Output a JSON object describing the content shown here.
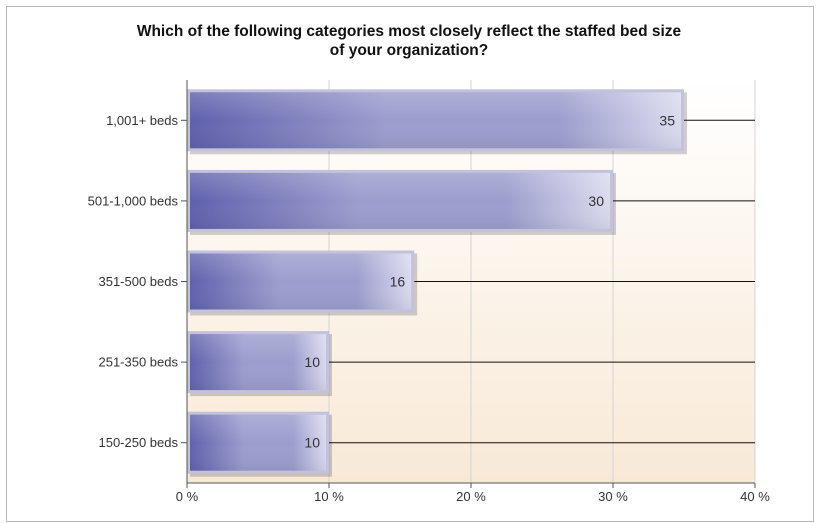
{
  "chart_data": {
    "type": "bar",
    "orientation": "horizontal",
    "title_line1": "Which of the following categories most closely reflect the staffed bed size",
    "title_line2": "of your organization?",
    "categories": [
      "1,001+ beds",
      "501-1,000 beds",
      "351-500 beds",
      "251-350 beds",
      "150-250 beds"
    ],
    "values": [
      35,
      30,
      16,
      10,
      10
    ],
    "value_labels": [
      "35",
      "30",
      "16",
      "10",
      "10"
    ],
    "xlim": [
      0,
      40
    ],
    "ticks": [
      0,
      10,
      20,
      30,
      40
    ],
    "tick_labels": [
      "0 %",
      "10 %",
      "20 %",
      "30 %",
      "40 %"
    ],
    "grid": true,
    "colors": {
      "bar_dark": "#5f60ad",
      "bar_mid": "#9c9dcd",
      "bar_light": "#dcdcef",
      "bar_border": "#c2c2dc",
      "bg_top": "#ffffff",
      "bg_bottom": "#f8e9d6",
      "line": "#111111",
      "grid": "#d4d4d4"
    }
  }
}
